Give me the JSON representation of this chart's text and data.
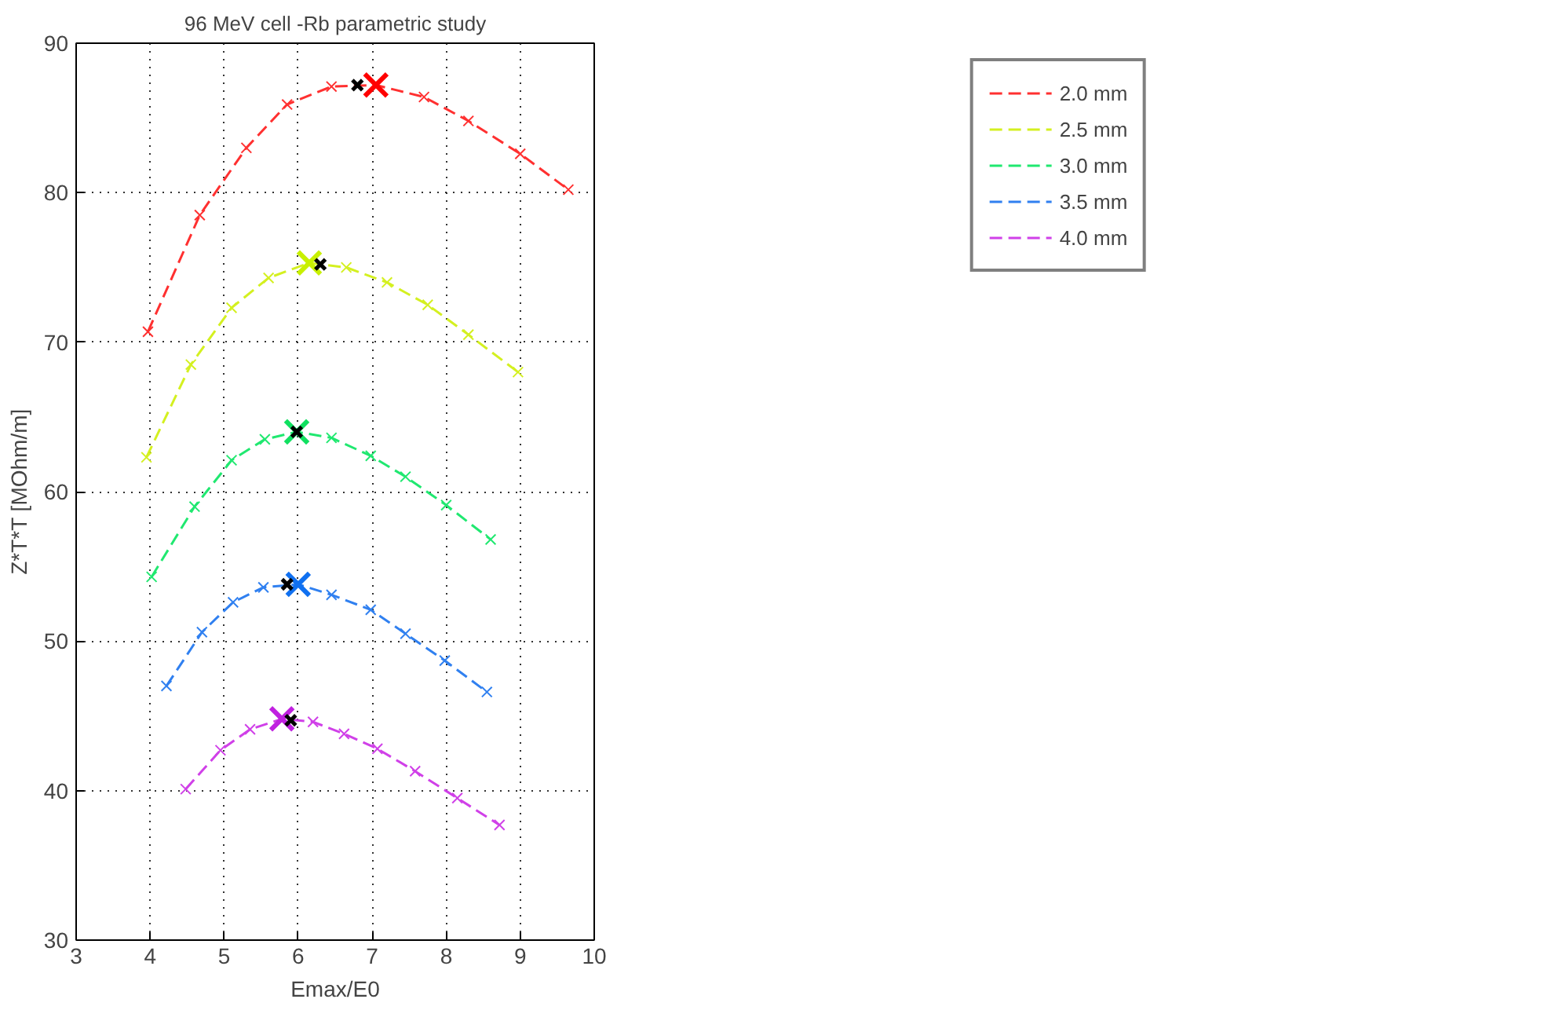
{
  "chart_data": {
    "type": "line",
    "title": "96 MeV cell -Rb parametric study",
    "xlabel": "Emax/E0",
    "ylabel": "Z*T*T [MOhm/m]",
    "xlim": [
      3,
      10
    ],
    "ylim": [
      30,
      90
    ],
    "xticks": [
      3,
      4,
      5,
      6,
      7,
      8,
      9,
      10
    ],
    "yticks": [
      30,
      40,
      50,
      60,
      70,
      80,
      90
    ],
    "grid": true,
    "legend": "right",
    "marker": "cross",
    "line_style": "dashed",
    "series": [
      {
        "name": "2.0 mm",
        "color": "#ff3030",
        "x": [
          3.97,
          4.67,
          5.3,
          5.85,
          6.45,
          7.05,
          7.7,
          8.3,
          9.0,
          9.65
        ],
        "values": [
          70.7,
          78.5,
          83.0,
          85.9,
          87.1,
          87.2,
          86.4,
          84.8,
          82.6,
          80.2
        ]
      },
      {
        "name": "2.5 mm",
        "color": "#d4f020",
        "x": [
          3.95,
          4.55,
          5.1,
          5.6,
          6.15,
          6.65,
          7.2,
          7.75,
          8.3,
          8.97
        ],
        "values": [
          62.3,
          68.5,
          72.3,
          74.3,
          75.3,
          75.0,
          74.0,
          72.5,
          70.5,
          68.0
        ]
      },
      {
        "name": "3.0 mm",
        "color": "#20e870",
        "x": [
          4.02,
          4.6,
          5.1,
          5.55,
          5.98,
          6.45,
          6.98,
          7.45,
          8.0,
          8.6
        ],
        "values": [
          54.3,
          59.0,
          62.1,
          63.5,
          64.0,
          63.6,
          62.4,
          61.0,
          59.1,
          56.8
        ]
      },
      {
        "name": "3.5 mm",
        "color": "#3080f0",
        "x": [
          4.22,
          4.7,
          5.12,
          5.53,
          6.0,
          6.45,
          6.98,
          7.45,
          7.98,
          8.55
        ],
        "values": [
          47.0,
          50.6,
          52.6,
          53.6,
          53.8,
          53.1,
          52.1,
          50.5,
          48.7,
          46.6
        ]
      },
      {
        "name": "4.0 mm",
        "color": "#d040e8",
        "x": [
          4.48,
          4.95,
          5.35,
          5.78,
          6.2,
          6.62,
          7.07,
          7.58,
          8.15,
          8.72
        ],
        "values": [
          40.1,
          42.7,
          44.1,
          44.8,
          44.6,
          43.8,
          42.8,
          41.3,
          39.5,
          37.7
        ]
      },
      {
        "type": "scatter",
        "x": [
          7.05,
          6.15,
          5.98,
          6.0,
          5.78
        ],
        "values": [
          87.2,
          75.3,
          64.0,
          53.8,
          44.8
        ],
        "colors": [
          "#ff0000",
          "#c8f000",
          "#10e060",
          "#1070f0",
          "#c020e0"
        ]
      },
      {
        "type": "scatter",
        "color": "#000000",
        "x": [
          6.8,
          6.3,
          5.98,
          5.85,
          5.9
        ],
        "values": [
          87.2,
          75.2,
          64.0,
          53.8,
          44.7
        ]
      }
    ]
  }
}
